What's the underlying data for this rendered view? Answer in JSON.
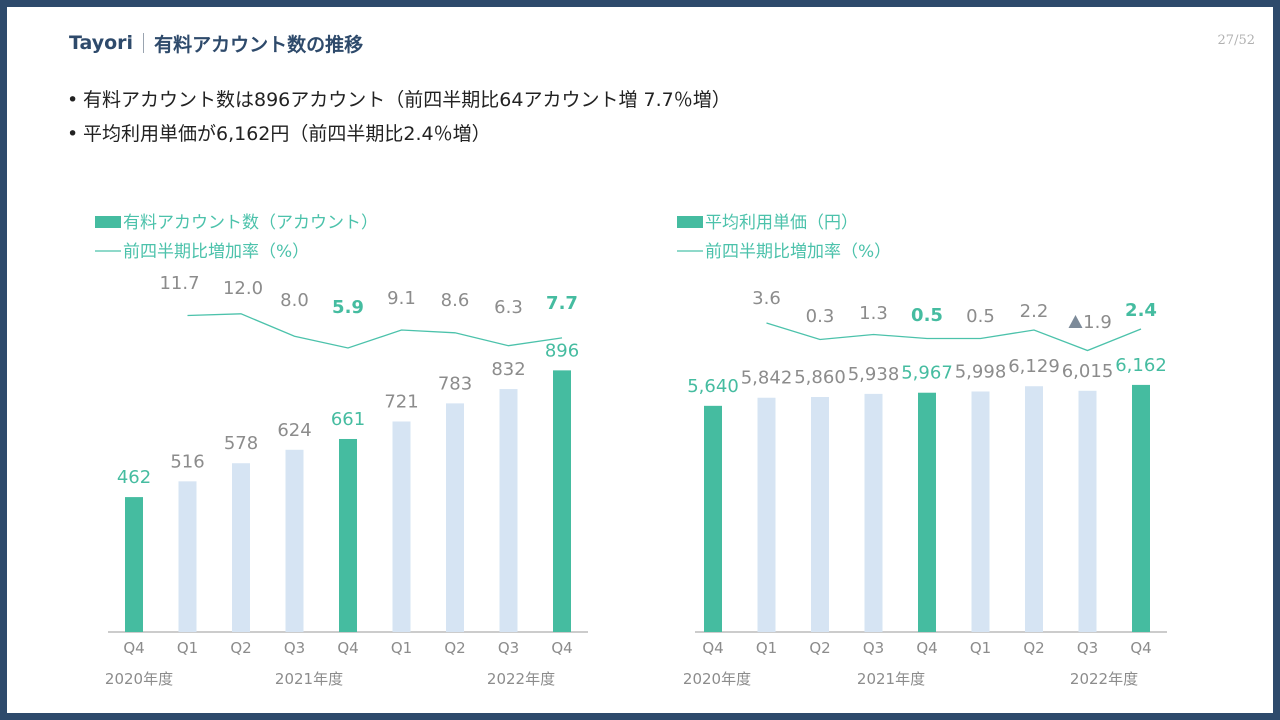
{
  "header": {
    "brand": "Tayori",
    "title": "有料アカウント数の推移",
    "page": "27/52"
  },
  "bullets": [
    "有料アカウント数は896アカウント（前四半期比64アカウント増 7.7％増）",
    "平均利用単価が6,162円（前四半期比2.4％増）"
  ],
  "colors": {
    "highlight": "#45BCA0",
    "bar_light": "#D6E4F3",
    "line": "#4CC2AB",
    "muted_text": "#8C8C8C",
    "brand": "#2E4A6B"
  },
  "chart_data": [
    {
      "type": "bar",
      "legend": [
        "有料アカウント数（アカウント）",
        "前四半期比増加率（%）"
      ],
      "categories": [
        "Q4",
        "Q1",
        "Q2",
        "Q3",
        "Q4",
        "Q1",
        "Q2",
        "Q3",
        "Q4"
      ],
      "year_labels": [
        "2020年度",
        "2021年度",
        "2022年度"
      ],
      "series": [
        {
          "name": "有料アカウント数（アカウント）",
          "values": [
            462,
            516,
            578,
            624,
            661,
            721,
            783,
            832,
            896
          ],
          "labels": [
            "462",
            "516",
            "578",
            "624",
            "661",
            "721",
            "783",
            "832",
            "896"
          ]
        },
        {
          "name": "前四半期比増加率（%）",
          "values": [
            null,
            11.7,
            12.0,
            8.0,
            5.9,
            9.1,
            8.6,
            6.3,
            7.7
          ],
          "labels": [
            "",
            "11.7",
            "12.0",
            "8.0",
            "5.9",
            "9.1",
            "8.6",
            "6.3",
            "7.7"
          ]
        }
      ],
      "highlight": [
        true,
        false,
        false,
        false,
        true,
        false,
        false,
        false,
        true
      ],
      "ylim": [
        0,
        1000
      ]
    },
    {
      "type": "bar",
      "legend": [
        "平均利用単価（円）",
        "前四半期比増加率（%）"
      ],
      "categories": [
        "Q4",
        "Q1",
        "Q2",
        "Q3",
        "Q4",
        "Q1",
        "Q2",
        "Q3",
        "Q4"
      ],
      "year_labels": [
        "2020年度",
        "2021年度",
        "2022年度"
      ],
      "series": [
        {
          "name": "平均利用単価（円）",
          "values": [
            5640,
            5842,
            5860,
            5938,
            5967,
            5998,
            6129,
            6015,
            6162
          ],
          "labels": [
            "5,640",
            "5,842",
            "5,860",
            "5,938",
            "5,967",
            "5,998",
            "6,129",
            "6,015",
            "6,162"
          ]
        },
        {
          "name": "前四半期比増加率（%）",
          "values": [
            null,
            3.6,
            0.3,
            1.3,
            0.5,
            0.5,
            2.2,
            -1.9,
            2.4
          ],
          "labels": [
            "",
            "3.6",
            "0.3",
            "1.3",
            "0.5",
            "0.5",
            "2.2",
            "▲ 1.9",
            "2.4"
          ]
        }
      ],
      "highlight": [
        true,
        false,
        false,
        false,
        true,
        false,
        false,
        false,
        true
      ],
      "ylim": [
        0,
        6500
      ]
    }
  ]
}
